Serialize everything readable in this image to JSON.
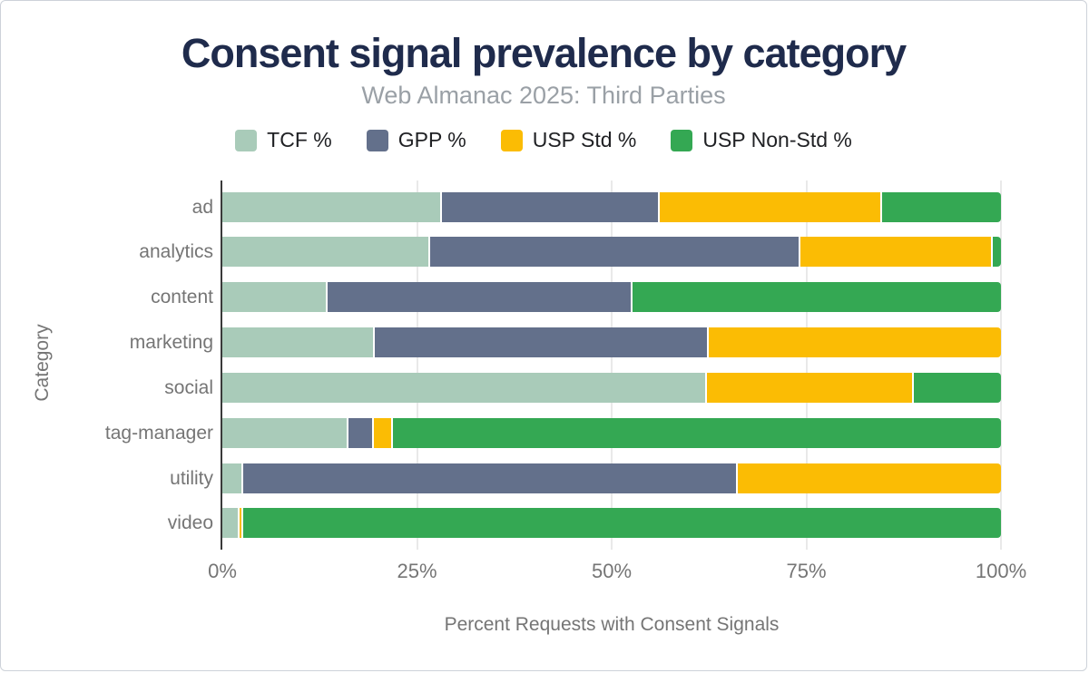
{
  "chart_data": {
    "type": "bar",
    "orientation": "horizontal",
    "stacked": true,
    "title": "Consent signal prevalence by category",
    "subtitle": "Web Almanac 2025: Third Parties",
    "xlabel": "Percent Requests with Consent Signals",
    "ylabel": "Category",
    "xlim": [
      0,
      100
    ],
    "x_ticks": [
      "0%",
      "25%",
      "50%",
      "75%",
      "100%"
    ],
    "grid": true,
    "legend_position": "top",
    "categories": [
      "ad",
      "analytics",
      "content",
      "marketing",
      "social",
      "tag-manager",
      "utility",
      "video"
    ],
    "series": [
      {
        "name": "TCF %",
        "color": "#a9cbb9",
        "values": [
          28,
          26.5,
          13.3,
          19.4,
          62,
          16,
          2.4,
          2
        ]
      },
      {
        "name": "GPP %",
        "color": "#63708b",
        "values": [
          28,
          47.5,
          39.1,
          42.8,
          0,
          3.2,
          63.6,
          0
        ]
      },
      {
        "name": "USP Std %",
        "color": "#fbbc04",
        "values": [
          28.5,
          24.7,
          0,
          37.8,
          26.6,
          2.5,
          34,
          0.5
        ]
      },
      {
        "name": "USP Non-Std %",
        "color": "#34a853",
        "values": [
          15.5,
          1.3,
          47.6,
          0,
          11.4,
          78.3,
          0,
          97.5
        ]
      }
    ]
  },
  "colors": {
    "title": "#1f2b4c",
    "subtitle": "#9aa0a6",
    "axis_text": "#757575",
    "gridline": "#e9e9e9",
    "axis_line": "#3a3a3a",
    "legend_text": "#202124",
    "background": "#ffffff",
    "frame_border": "#cdd2d9"
  }
}
